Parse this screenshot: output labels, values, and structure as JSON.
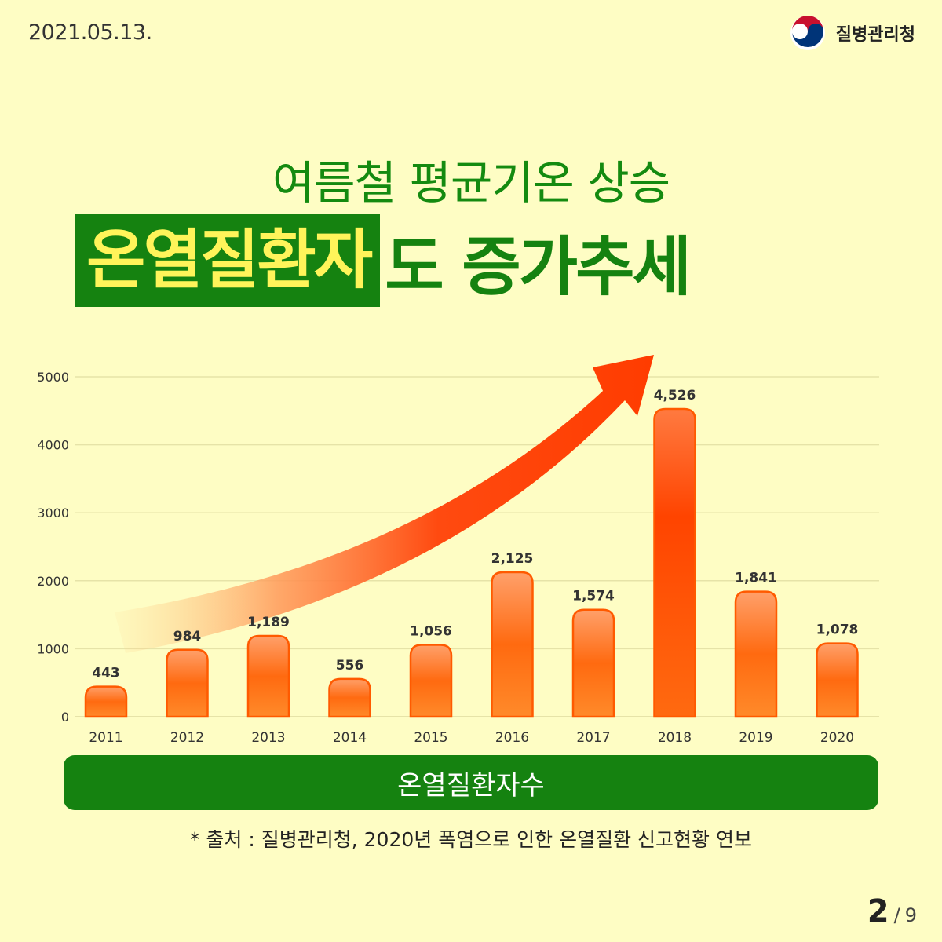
{
  "header": {
    "date": "2021.05.13.",
    "agency": "질병관리청"
  },
  "title": {
    "line1": "여름철 평균기온 상승",
    "highlight": "온열질환자",
    "rest": "도 증가추세"
  },
  "chart_data": {
    "type": "bar",
    "categories": [
      "2011",
      "2012",
      "2013",
      "2014",
      "2015",
      "2016",
      "2017",
      "2018",
      "2019",
      "2020"
    ],
    "values": [
      443,
      984,
      1189,
      556,
      1056,
      2125,
      1574,
      4526,
      1841,
      1078
    ],
    "value_labels": [
      "443",
      "984",
      "1,189",
      "556",
      "1,056",
      "2,125",
      "1,574",
      "4,526",
      "1,841",
      "1,078"
    ],
    "yticks": [
      "0",
      "1000",
      "2000",
      "3000",
      "4000",
      "5000"
    ],
    "ylim": [
      0,
      5000
    ],
    "grid": true,
    "legend": "온열질환자수",
    "colors": {
      "bar": "#ff7a1a",
      "bar_peak": "#ff4a00",
      "arrow": "#ff3c00",
      "grid": "#e6e3a8"
    }
  },
  "footer": {
    "source": "* 출처 : 질병관리청, 2020년 폭염으로 인한 온열질환 신고현황 연보",
    "page_current": "2",
    "page_sep": "/",
    "page_total": "9"
  },
  "colors": {
    "background": "#fefdc4",
    "green": "#158210",
    "highlight_text": "#fff45a"
  }
}
